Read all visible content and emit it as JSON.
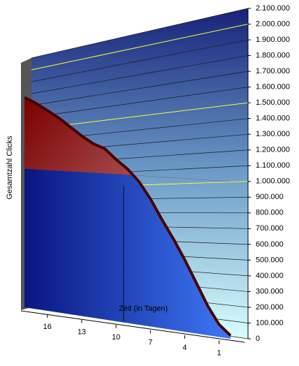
{
  "chart_data": {
    "type": "area",
    "x_label": "Zeit (in Tagen)",
    "y_label": "Gesamtzahl Clicks",
    "x": [
      18,
      17,
      16,
      15,
      14,
      13,
      12,
      11,
      10,
      9,
      8,
      7,
      6,
      5,
      4,
      3,
      2,
      1,
      0
    ],
    "values": [
      1510000,
      1470000,
      1420000,
      1370000,
      1310000,
      1250000,
      1200000,
      1170000,
      1100000,
      1040000,
      960000,
      850000,
      720000,
      600000,
      470000,
      330000,
      190000,
      80000,
      20000
    ],
    "xlim": [
      18,
      0
    ],
    "xticks": [
      16,
      13,
      10,
      7,
      4,
      1
    ],
    "ylim": [
      0,
      2100000
    ],
    "yticks": [
      0,
      {
        "value": 100000,
        "label": "100.000"
      },
      {
        "value": 200000,
        "label": "200.000"
      },
      {
        "value": 300000,
        "label": "300.000"
      },
      {
        "value": 400000,
        "label": "400.000"
      },
      {
        "value": 500000,
        "label": "500.000"
      },
      {
        "value": 600000,
        "label": "600.000"
      },
      {
        "value": 700000,
        "label": "700.000"
      },
      {
        "value": 800000,
        "label": "800.000"
      },
      {
        "value": 900000,
        "label": "900.000"
      },
      {
        "value": 1000000,
        "label": "1.000.000"
      },
      {
        "value": 1100000,
        "label": "1.100.000"
      },
      {
        "value": 1200000,
        "label": "1.200.000"
      },
      {
        "value": 1300000,
        "label": "1.300.000"
      },
      {
        "value": 1400000,
        "label": "1.400.000"
      },
      {
        "value": 1500000,
        "label": "1.500.000"
      },
      {
        "value": 1600000,
        "label": "1.600.000"
      },
      {
        "value": 1700000,
        "label": "1.700.000"
      },
      {
        "value": 1800000,
        "label": "1.800.000"
      },
      {
        "value": 1900000,
        "label": "1.900.000"
      },
      {
        "value": 2000000,
        "label": "2.000.000"
      },
      {
        "value": 2100000,
        "label": "2.100.000"
      }
    ],
    "highlighted_gridlines": [
      1000000,
      1500000,
      2000000
    ],
    "highlight_color": "#ffff40",
    "grid": true,
    "upper_color": "#8b0a0a",
    "lower_color": "#1a2fb0"
  }
}
